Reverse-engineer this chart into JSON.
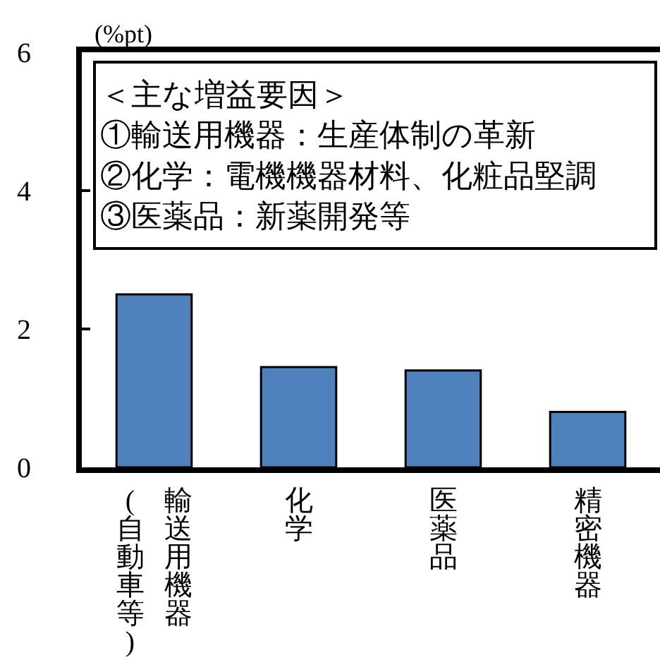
{
  "chart_data": {
    "type": "bar",
    "ylabel": "(%pt)",
    "annotations": [
      "＜主な増益要因＞\n①輸送用機器：生産体制の革新\n②化学：電機機器材料、化粧品堅調\n③医薬品：新薬開発等",
      "(自動車等)"
    ],
    "categories": [
      "輸送用機器",
      "化学",
      "医薬品",
      "精密機器"
    ],
    "values": [
      2.5,
      1.45,
      1.4,
      0.8
    ],
    "color": "#4f81bd",
    "ylim": [
      0,
      6
    ],
    "yticks": [
      0,
      2,
      4,
      6
    ],
    "grid": false
  }
}
